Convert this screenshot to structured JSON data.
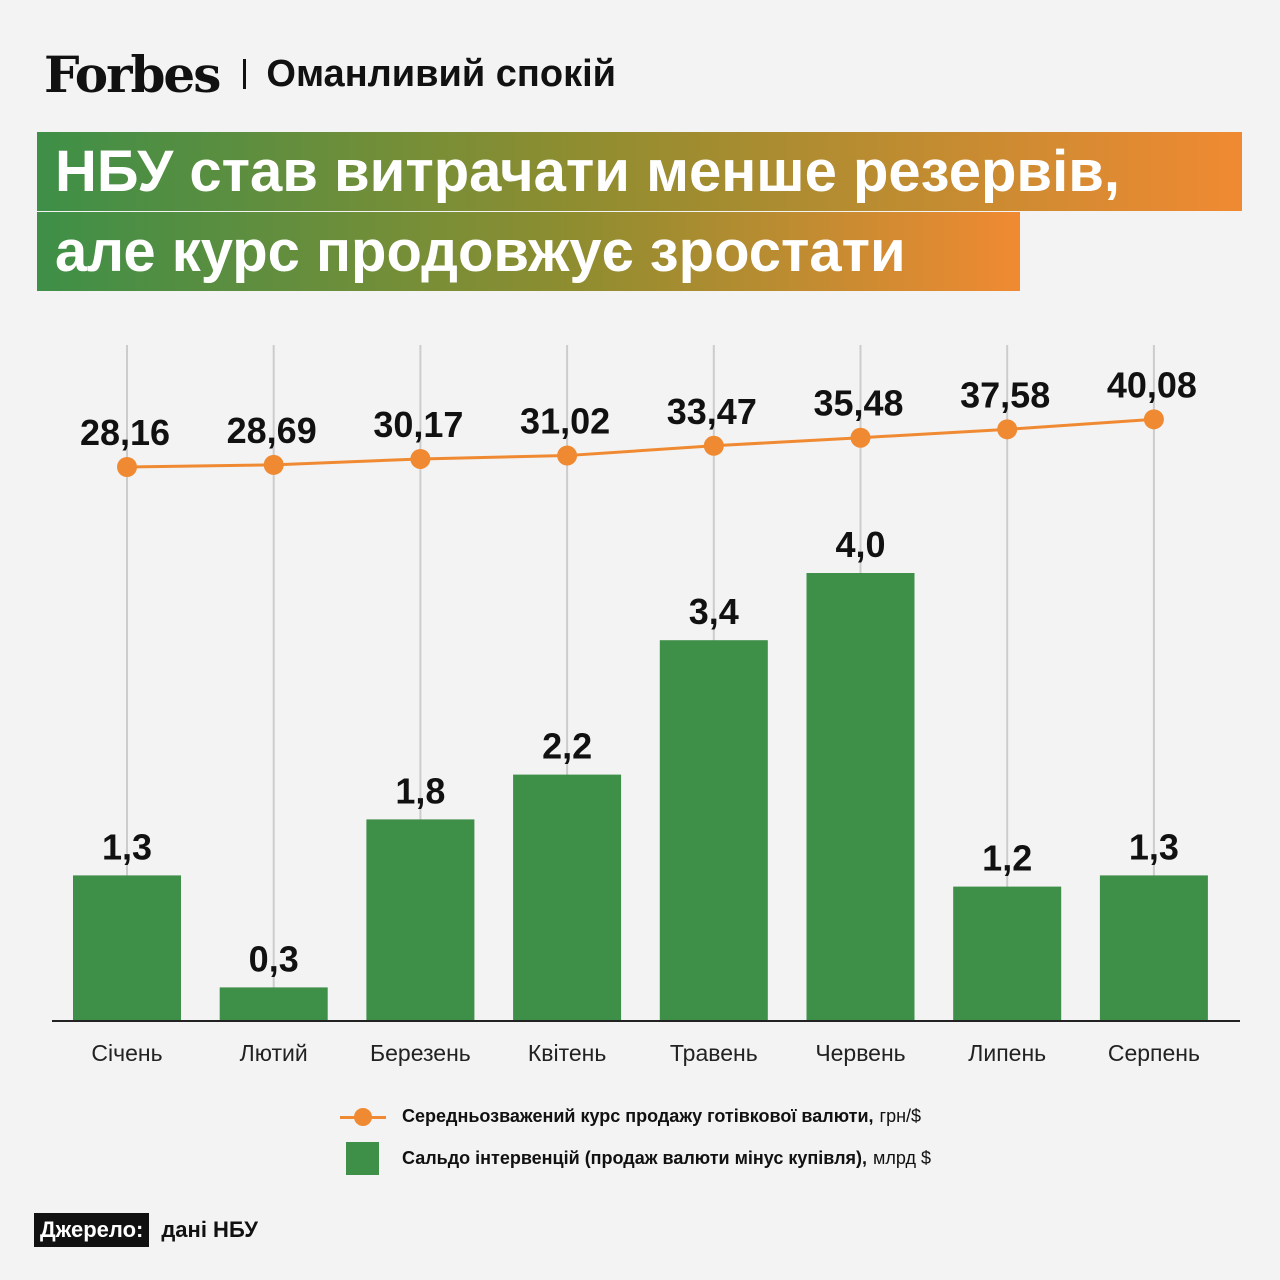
{
  "header": {
    "logo": "Forbes",
    "section": "Оманливий спокій"
  },
  "title": {
    "line1": "НБУ став витрачати менше резервів,",
    "line2": "але курс продовжує зростати"
  },
  "chart_data": {
    "type": "bar",
    "categories": [
      "Січень",
      "Лютий",
      "Березень",
      "Квітень",
      "Травень",
      "Червень",
      "Липень",
      "Серпень"
    ],
    "series": [
      {
        "name": "Сальдо інтервенцій (продаж валюти мінус купівля)",
        "unit": "млрд $",
        "kind": "bar",
        "values": [
          1.3,
          0.3,
          1.8,
          2.2,
          3.4,
          4.0,
          1.2,
          1.3
        ],
        "labels": [
          "1,3",
          "0,3",
          "1,8",
          "2,2",
          "3,4",
          "4,0",
          "1,2",
          "1,3"
        ],
        "color": "#3e8f48"
      },
      {
        "name": "Середньозважений курс продажу готівкової валюти",
        "unit": "грн/$",
        "kind": "line",
        "values": [
          28.16,
          28.69,
          30.17,
          31.02,
          33.47,
          35.48,
          37.58,
          40.08
        ],
        "labels": [
          "28,16",
          "28,69",
          "30,17",
          "31,02",
          "33,47",
          "35,48",
          "37,58",
          "40,08"
        ],
        "color": "#f08a32"
      }
    ],
    "legend_position": "bottom",
    "grid": "vertical"
  },
  "legend": {
    "line_name": "Середньозважений курс продажу готівкової валюти,",
    "line_unit": "грн/$",
    "bar_name": "Сальдо інтервенцій (продаж валюти мінус купівля),",
    "bar_unit": "млрд $"
  },
  "source": {
    "label": "Джерело:",
    "value": "дані НБУ"
  },
  "colors": {
    "green": "#3e8f48",
    "orange": "#f08a32",
    "background": "#f3f3f3"
  }
}
